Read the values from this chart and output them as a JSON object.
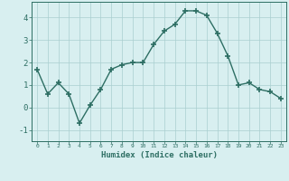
{
  "x": [
    0,
    1,
    2,
    3,
    4,
    5,
    6,
    7,
    8,
    9,
    10,
    11,
    12,
    13,
    14,
    15,
    16,
    17,
    18,
    19,
    20,
    21,
    22,
    23
  ],
  "y": [
    1.7,
    0.6,
    1.1,
    0.6,
    -0.7,
    0.1,
    0.8,
    1.7,
    1.9,
    2.0,
    2.0,
    2.8,
    3.4,
    3.7,
    4.3,
    4.3,
    4.1,
    3.3,
    2.3,
    1.0,
    1.1,
    0.8,
    0.7,
    0.4
  ],
  "xlabel": "Humidex (Indice chaleur)",
  "ylim": [
    -1.5,
    4.7
  ],
  "xlim": [
    -0.5,
    23.5
  ],
  "yticks": [
    -1,
    0,
    1,
    2,
    3,
    4
  ],
  "xticks": [
    0,
    1,
    2,
    3,
    4,
    5,
    6,
    7,
    8,
    9,
    10,
    11,
    12,
    13,
    14,
    15,
    16,
    17,
    18,
    19,
    20,
    21,
    22,
    23
  ],
  "line_color": "#2d6e63",
  "marker": "+",
  "bg_color": "#d8eff0",
  "grid_color": "#aacfcf",
  "title": ""
}
